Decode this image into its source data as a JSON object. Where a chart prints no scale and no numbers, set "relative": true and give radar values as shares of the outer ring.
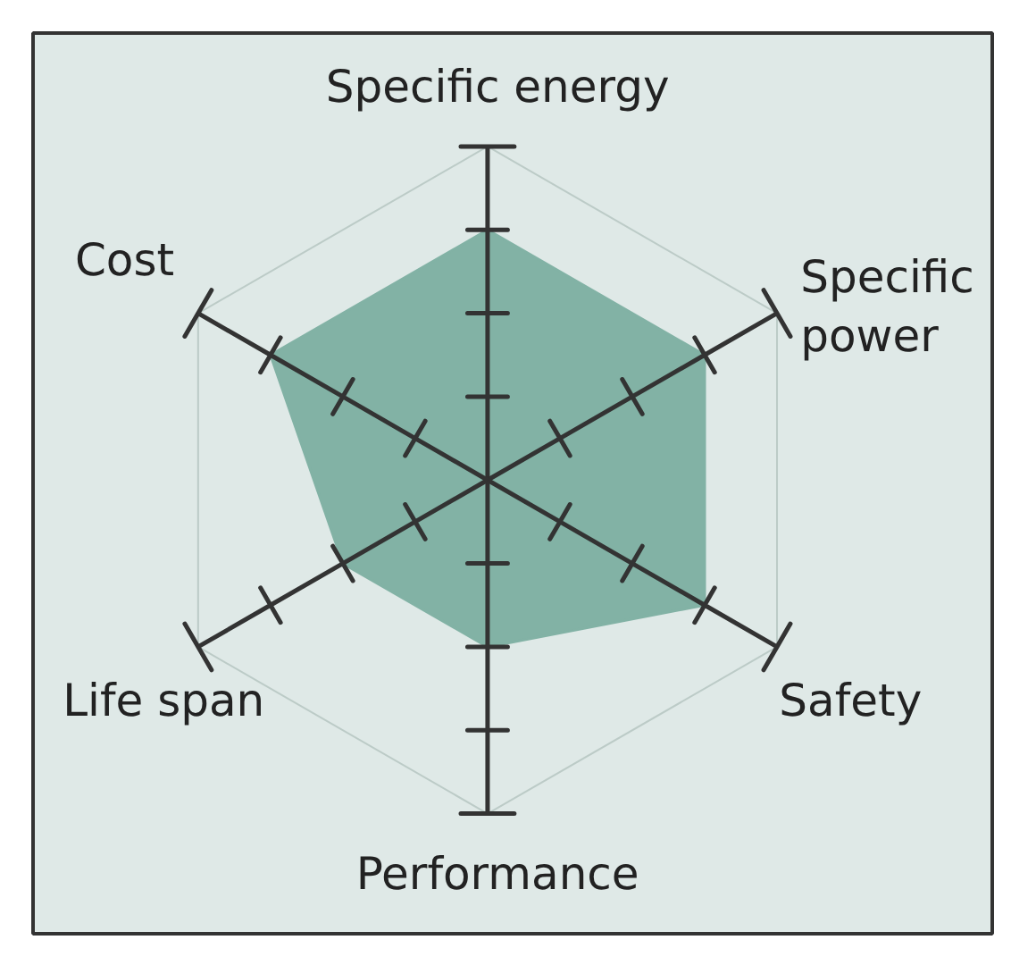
{
  "chart_data": {
    "type": "radar",
    "relative": true,
    "categories": [
      "Specific energy",
      "Specific power",
      "Safety",
      "Performance",
      "Life span",
      "Cost"
    ],
    "series": [
      {
        "color": "#82b2a5",
        "values": [
          0.75,
          0.75,
          0.75,
          0.5,
          0.5,
          0.75
        ]
      }
    ]
  }
}
